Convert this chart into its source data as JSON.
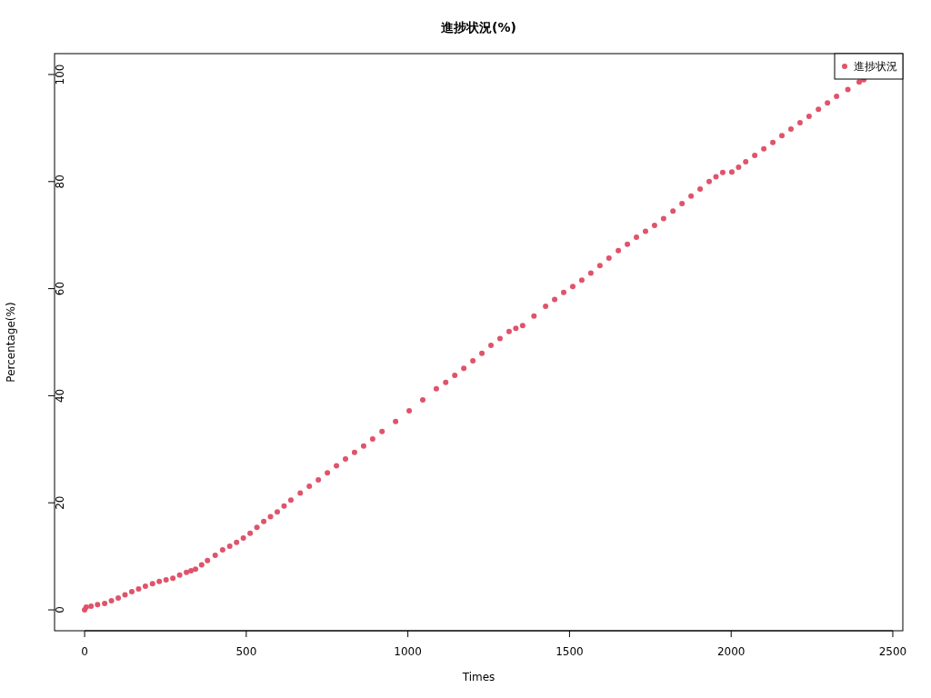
{
  "chart_data": {
    "type": "scatter",
    "title": "進捗状況(%)",
    "xlabel": "Times",
    "ylabel": "Percentage(%)",
    "xlim": [
      -93,
      2531
    ],
    "ylim": [
      -3.9,
      103.9
    ],
    "xticks": [
      0,
      500,
      1000,
      1500,
      2000,
      2500
    ],
    "yticks": [
      0,
      20,
      40,
      60,
      80,
      100
    ],
    "grid": false,
    "legend": "top right",
    "marker": "circle",
    "series": [
      {
        "name": "進捗状況",
        "color": "#df536b",
        "x": [
          0,
          5,
          20,
          40,
          62,
          83,
          104,
          125,
          146,
          167,
          188,
          210,
          231,
          252,
          273,
          294,
          315,
          329,
          343,
          362,
          380,
          404,
          427,
          449,
          470,
          491,
          512,
          533,
          554,
          575,
          596,
          617,
          638,
          667,
          695,
          723,
          751,
          779,
          807,
          835,
          863,
          891,
          920,
          962,
          1004,
          1046,
          1088,
          1117,
          1145,
          1173,
          1201,
          1229,
          1257,
          1285,
          1313,
          1334,
          1355,
          1390,
          1426,
          1454,
          1482,
          1510,
          1538,
          1566,
          1594,
          1622,
          1651,
          1679,
          1707,
          1735,
          1763,
          1791,
          1820,
          1848,
          1876,
          1904,
          1932,
          1953,
          1974,
          2002,
          2023,
          2045,
          2073,
          2101,
          2129,
          2157,
          2185,
          2213,
          2241,
          2270,
          2298,
          2326,
          2361,
          2396,
          2410
        ],
        "values": [
          0,
          0.5,
          0.7,
          1.0,
          1.2,
          1.7,
          2.2,
          2.8,
          3.4,
          3.9,
          4.4,
          4.9,
          5.3,
          5.6,
          5.9,
          6.5,
          7.0,
          7.3,
          7.6,
          8.4,
          9.2,
          10.2,
          11.2,
          11.9,
          12.6,
          13.4,
          14.3,
          15.4,
          16.5,
          17.4,
          18.3,
          19.4,
          20.5,
          21.8,
          23.1,
          24.3,
          25.6,
          26.9,
          28.2,
          29.4,
          30.6,
          31.9,
          33.3,
          35.2,
          37.2,
          39.2,
          41.3,
          42.5,
          43.8,
          45.1,
          46.5,
          47.9,
          49.4,
          50.7,
          52.0,
          52.6,
          53.1,
          54.9,
          56.7,
          58.0,
          59.3,
          60.4,
          61.6,
          62.9,
          64.3,
          65.7,
          67.1,
          68.3,
          69.6,
          70.7,
          71.8,
          73.1,
          74.5,
          75.9,
          77.3,
          78.6,
          80.0,
          80.9,
          81.7,
          81.8,
          82.7,
          83.7,
          84.9,
          86.1,
          87.3,
          88.6,
          89.8,
          91.0,
          92.2,
          93.5,
          94.7,
          95.9,
          97.2,
          98.6,
          99.0
        ]
      }
    ]
  }
}
